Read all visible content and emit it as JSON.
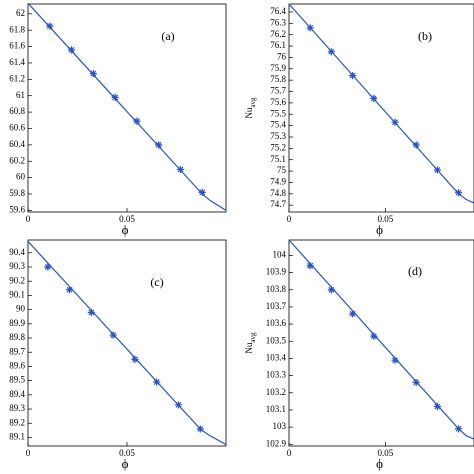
{
  "chart_data": [
    {
      "type": "line",
      "annotation": "(a)",
      "x_label": "ϕ",
      "xlim": [
        0,
        0.1
      ],
      "xticks": [
        0,
        0.05
      ],
      "ylim": [
        59.58,
        62.12
      ],
      "yticks": [
        59.6,
        59.8,
        60,
        60.2,
        60.4,
        60.6,
        60.8,
        61,
        61.2,
        61.4,
        61.6,
        61.8,
        62
      ],
      "series": [
        {
          "style": "line",
          "color": "#2a55c0",
          "x": [
            0,
            0.088,
            0.092,
            0.1
          ],
          "values": [
            62.13,
            59.8,
            59.72,
            59.6
          ]
        },
        {
          "style": "marker",
          "color": "#2a55c0",
          "x": [
            0.011,
            0.022,
            0.033,
            0.044,
            0.055,
            0.066,
            0.077,
            0.088
          ],
          "values": [
            61.85,
            61.56,
            61.27,
            60.98,
            60.69,
            60.4,
            60.1,
            59.82
          ]
        }
      ]
    },
    {
      "type": "line",
      "annotation": "(b)",
      "x_label": "ϕ",
      "y_label": {
        "text": "Nu",
        "subscript": "avg"
      },
      "xlim": [
        0,
        0.096
      ],
      "xticks": [
        0,
        0.05
      ],
      "ylim": [
        74.64,
        76.47
      ],
      "yticks": [
        74.7,
        74.8,
        74.9,
        75,
        75.1,
        75.2,
        75.3,
        75.4,
        75.5,
        75.6,
        75.7,
        75.8,
        75.9,
        76,
        76.1,
        76.2,
        76.3,
        76.4
      ],
      "series": [
        {
          "style": "line",
          "color": "#2a55c0",
          "x": [
            0,
            0.088,
            0.092,
            0.096
          ],
          "values": [
            76.47,
            74.8,
            74.75,
            74.72
          ]
        },
        {
          "style": "marker",
          "color": "#2a55c0",
          "x": [
            0.011,
            0.022,
            0.033,
            0.044,
            0.055,
            0.066,
            0.077,
            0.088
          ],
          "values": [
            76.26,
            76.05,
            75.84,
            75.64,
            75.43,
            75.23,
            75.01,
            74.81
          ]
        }
      ]
    },
    {
      "type": "line",
      "annotation": "(c)",
      "x_label": "ϕ",
      "xlim": [
        0,
        0.1
      ],
      "xticks": [
        0,
        0.05
      ],
      "ylim": [
        89.04,
        90.49
      ],
      "yticks": [
        89.1,
        89.2,
        89.3,
        89.4,
        89.5,
        89.6,
        89.7,
        89.8,
        89.9,
        90,
        90.1,
        90.2,
        90.3,
        90.4
      ],
      "series": [
        {
          "style": "line",
          "color": "#2a55c0",
          "x": [
            0,
            0.087,
            0.091,
            0.1
          ],
          "values": [
            90.48,
            89.16,
            89.12,
            89.05
          ]
        },
        {
          "style": "marker",
          "color": "#2a55c0",
          "x": [
            0.01,
            0.021,
            0.032,
            0.043,
            0.054,
            0.065,
            0.076,
            0.087
          ],
          "values": [
            90.3,
            90.14,
            89.98,
            89.82,
            89.65,
            89.49,
            89.33,
            89.16
          ]
        }
      ]
    },
    {
      "type": "line",
      "annotation": "(d)",
      "x_label": "ϕ",
      "y_label": {
        "text": "Nu",
        "subscript": "avg"
      },
      "xlim": [
        0,
        0.096
      ],
      "xticks": [
        0,
        0.05
      ],
      "ylim": [
        102.89,
        104.09
      ],
      "yticks": [
        102.9,
        103,
        103.1,
        103.2,
        103.3,
        103.4,
        103.5,
        103.6,
        103.7,
        103.8,
        103.9,
        104
      ],
      "series": [
        {
          "style": "line",
          "color": "#2a55c0",
          "x": [
            0,
            0.088,
            0.092,
            0.096
          ],
          "values": [
            104.09,
            102.99,
            102.95,
            102.93
          ]
        },
        {
          "style": "marker",
          "color": "#2a55c0",
          "x": [
            0.011,
            0.022,
            0.033,
            0.044,
            0.055,
            0.066,
            0.077,
            0.088
          ],
          "values": [
            103.94,
            103.8,
            103.66,
            103.53,
            103.39,
            103.26,
            103.12,
            102.99
          ]
        }
      ]
    }
  ]
}
